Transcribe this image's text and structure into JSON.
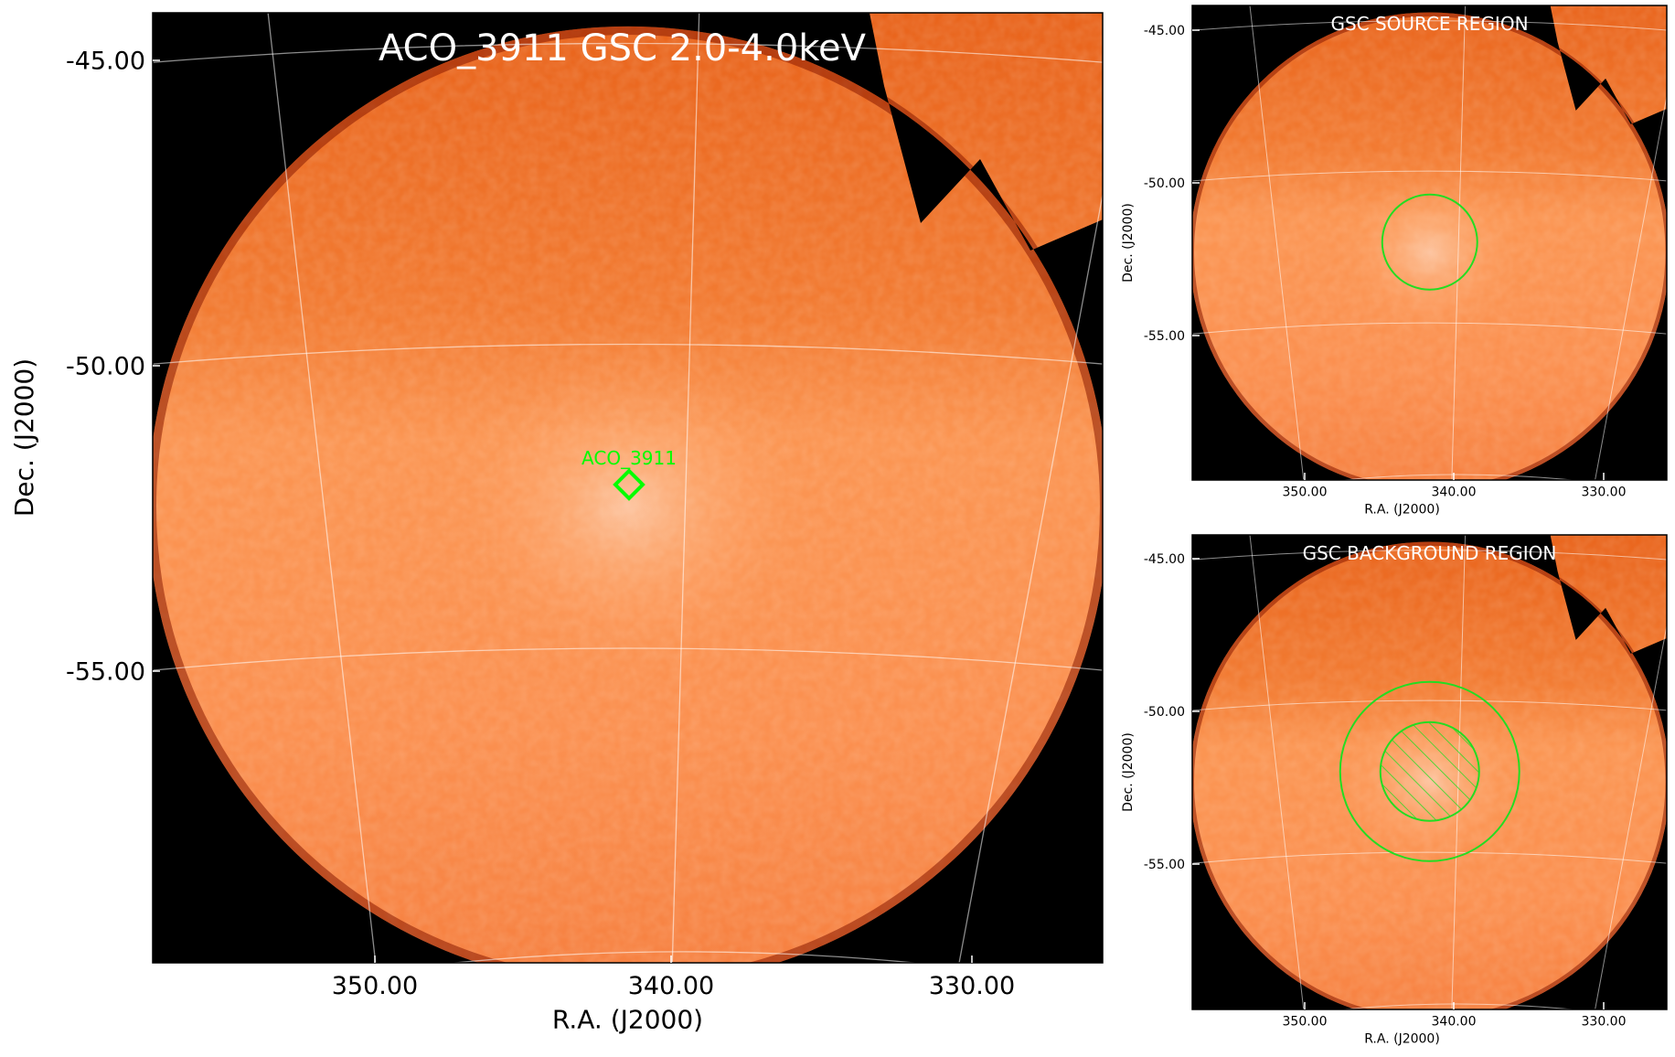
{
  "chart_data": [
    {
      "type": "heatmap",
      "panel": "main",
      "title": "ACO_3911 GSC 2.0-4.0keV",
      "xlabel": "R.A. (J2000)",
      "ylabel": "Dec. (J2000)",
      "x_ticks": [
        "350.00",
        "340.00",
        "330.00"
      ],
      "y_ticks": [
        "-45.00",
        "-50.00",
        "-55.00"
      ],
      "x_range_deg": [
        357.5,
        324.8
      ],
      "y_range_deg": [
        -44.0,
        -59.5
      ],
      "grid": true,
      "colormap": "gist_heat",
      "marker": {
        "label": "ACO_3911",
        "shape": "diamond",
        "ra": 341.6,
        "dec": -52.0,
        "color": "#00ff00"
      }
    },
    {
      "type": "heatmap",
      "panel": "source-region",
      "title": "GSC SOURCE REGION",
      "xlabel": "R.A. (J2000)",
      "ylabel": "Dec. (J2000)",
      "x_ticks": [
        "350.00",
        "340.00",
        "330.00"
      ],
      "y_ticks": [
        "-45.00",
        "-50.00",
        "-55.00"
      ],
      "grid": true,
      "region": {
        "shape": "circle",
        "ra": 341.6,
        "dec": -52.0,
        "color": "#22dd22"
      }
    },
    {
      "type": "heatmap",
      "panel": "background-region",
      "title": "GSC BACKGROUND REGION",
      "xlabel": "R.A. (J2000)",
      "ylabel": "Dec. (J2000)",
      "x_ticks": [
        "350.00",
        "340.00",
        "330.00"
      ],
      "y_ticks": [
        "-45.00",
        "-50.00",
        "-55.00"
      ],
      "grid": true,
      "region": {
        "shape": "annulus",
        "excluded": "hatched-inner-circle",
        "ra": 341.6,
        "dec": -52.0,
        "color": "#22dd22"
      }
    }
  ]
}
